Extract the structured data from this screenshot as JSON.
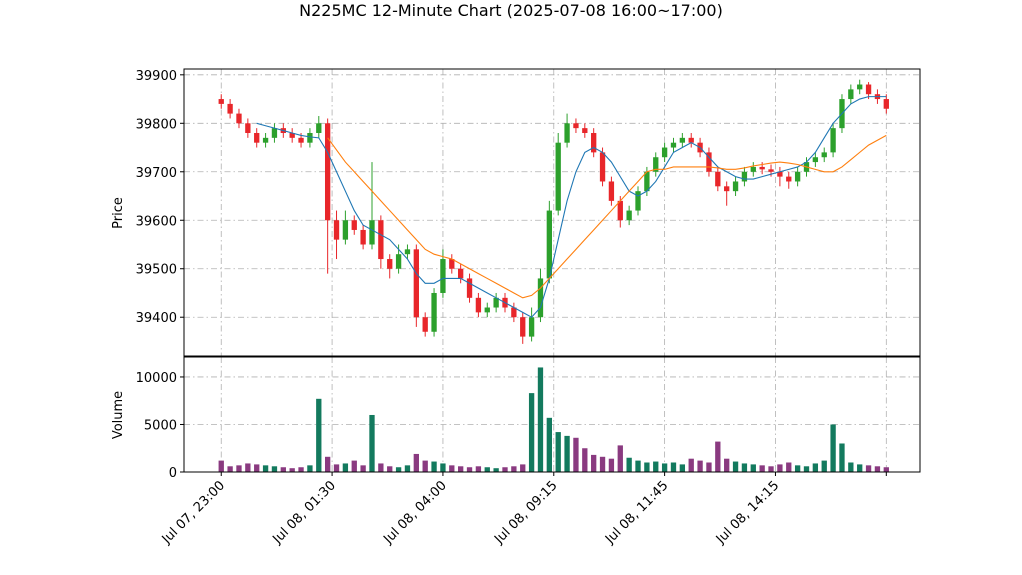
{
  "chart_data": {
    "type": "candlestick",
    "title": "N225MC 12-Minute Chart (2025-07-08 16:00~17:00)",
    "price_axis_label": "Price",
    "volume_axis_label": "Volume",
    "open": [
      39850,
      39840,
      39820,
      39800,
      39780,
      39760,
      39770,
      39790,
      39780,
      39770,
      39760,
      39780,
      39800,
      39600,
      39560,
      39600,
      39580,
      39550,
      39600,
      39520,
      39500,
      39530,
      39540,
      39400,
      39370,
      39450,
      39520,
      39500,
      39480,
      39440,
      39410,
      39420,
      39440,
      39420,
      39400,
      39360,
      39400,
      39480,
      39620,
      39760,
      39800,
      39790,
      39780,
      39740,
      39680,
      39640,
      39600,
      39620,
      39660,
      39700,
      39730,
      39750,
      39760,
      39770,
      39760,
      39740,
      39700,
      39670,
      39660,
      39680,
      39700,
      39710,
      39705,
      39700,
      39690,
      39680,
      39700,
      39720,
      39730,
      39740,
      39790,
      39850,
      39870,
      39880,
      39860,
      39850
    ],
    "high": [
      39860,
      39850,
      39830,
      39810,
      39790,
      39780,
      39800,
      39800,
      39790,
      39780,
      39790,
      39815,
      39810,
      39620,
      39620,
      39610,
      39590,
      39720,
      39610,
      39530,
      39550,
      39550,
      39550,
      39410,
      39460,
      39540,
      39530,
      39510,
      39490,
      39450,
      39430,
      39450,
      39450,
      39430,
      39410,
      39420,
      39500,
      39640,
      39780,
      39820,
      39810,
      39800,
      39790,
      39750,
      39690,
      39650,
      39630,
      39670,
      39710,
      39740,
      39760,
      39770,
      39780,
      39780,
      39770,
      39750,
      39710,
      39680,
      39690,
      39710,
      39720,
      39720,
      39715,
      39710,
      39700,
      39710,
      39730,
      39740,
      39750,
      39800,
      39860,
      39880,
      39890,
      39885,
      39870,
      39860
    ],
    "low": [
      39830,
      39810,
      39790,
      39770,
      39750,
      39750,
      39760,
      39770,
      39760,
      39750,
      39750,
      39770,
      39490,
      39520,
      39550,
      39570,
      39540,
      39540,
      39500,
      39480,
      39490,
      39520,
      39380,
      39360,
      39360,
      39440,
      39490,
      39470,
      39430,
      39400,
      39400,
      39410,
      39410,
      39390,
      39345,
      39350,
      39390,
      39470,
      39610,
      39750,
      39780,
      39770,
      39730,
      39670,
      39630,
      39585,
      39590,
      39610,
      39650,
      39690,
      39720,
      39740,
      39750,
      39750,
      39730,
      39690,
      39660,
      39630,
      39650,
      39670,
      39690,
      39695,
      39690,
      39670,
      39665,
      39670,
      39690,
      39710,
      39720,
      39730,
      39780,
      39840,
      39860,
      39850,
      39840,
      39820
    ],
    "close": [
      39840,
      39820,
      39800,
      39780,
      39760,
      39770,
      39790,
      39780,
      39770,
      39760,
      39780,
      39800,
      39600,
      39560,
      39600,
      39580,
      39550,
      39600,
      39520,
      39500,
      39530,
      39540,
      39400,
      39370,
      39450,
      39520,
      39500,
      39480,
      39440,
      39410,
      39420,
      39440,
      39420,
      39400,
      39360,
      39400,
      39480,
      39620,
      39760,
      39800,
      39790,
      39780,
      39740,
      39680,
      39640,
      39600,
      39620,
      39660,
      39700,
      39730,
      39750,
      39760,
      39770,
      39760,
      39740,
      39700,
      39670,
      39660,
      39680,
      39700,
      39710,
      39705,
      39700,
      39690,
      39680,
      39700,
      39720,
      39730,
      39740,
      39790,
      39850,
      39870,
      39880,
      39860,
      39850,
      39830
    ],
    "volume": [
      1200,
      600,
      700,
      900,
      800,
      700,
      600,
      500,
      400,
      500,
      700,
      7700,
      1600,
      800,
      900,
      1200,
      700,
      6000,
      900,
      600,
      500,
      700,
      1900,
      1200,
      1100,
      900,
      700,
      600,
      500,
      600,
      500,
      400,
      500,
      600,
      800,
      8300,
      11000,
      5700,
      4200,
      3800,
      3600,
      2500,
      1800,
      1600,
      1400,
      2800,
      1500,
      1200,
      1000,
      1100,
      900,
      1000,
      800,
      1400,
      1200,
      1000,
      3200,
      1400,
      1100,
      900,
      800,
      700,
      600,
      800,
      1000,
      700,
      600,
      900,
      1200,
      5000,
      3000,
      1000,
      800,
      700,
      600,
      500
    ],
    "moving_averages": [
      {
        "color": "#1f77b4",
        "values": [
          null,
          null,
          null,
          null,
          39800,
          39795,
          39790,
          39785,
          39780,
          39775,
          39772,
          39770,
          39740,
          39700,
          39660,
          39620,
          39590,
          39580,
          39570,
          39560,
          39540,
          39520,
          39490,
          39470,
          39470,
          39480,
          39480,
          39480,
          39470,
          39460,
          39450,
          39440,
          39430,
          39420,
          39410,
          39400,
          39420,
          39480,
          39560,
          39640,
          39700,
          39740,
          39750,
          39740,
          39720,
          39690,
          39660,
          39650,
          39660,
          39680,
          39710,
          39740,
          39750,
          39760,
          39750,
          39730,
          39710,
          39700,
          39690,
          39685,
          39685,
          39690,
          39695,
          39700,
          39705,
          39710,
          39720,
          39740,
          39770,
          39800,
          39820,
          39840,
          39850,
          39855,
          39855,
          39855
        ]
      },
      {
        "color": "#ff7f0e",
        "values": [
          null,
          null,
          null,
          null,
          null,
          null,
          null,
          null,
          null,
          null,
          null,
          null,
          39770,
          39745,
          39720,
          39700,
          39680,
          39660,
          39640,
          39620,
          39600,
          39580,
          39560,
          39540,
          39530,
          39525,
          39520,
          39510,
          39500,
          39490,
          39480,
          39470,
          39460,
          39450,
          39440,
          39445,
          39460,
          39480,
          39500,
          39520,
          39540,
          39560,
          39580,
          39600,
          39620,
          39640,
          39660,
          39680,
          39700,
          39705,
          39705,
          39710,
          39710,
          39710,
          39710,
          39710,
          39708,
          39705,
          39705,
          39708,
          39712,
          39715,
          39718,
          39720,
          39718,
          39715,
          39710,
          39705,
          39700,
          39700,
          39710,
          39725,
          39740,
          39755,
          39765,
          39775
        ]
      }
    ],
    "up_color": "#2ca02c",
    "down_color": "#e8262a",
    "volume_up_color": "#137a5e",
    "volume_down_color": "#8a3a80",
    "xlim": [
      -4.2,
      78.8
    ],
    "xticks": [
      {
        "value": 0,
        "label": "Jul 07, 23:00"
      },
      {
        "value": 12.5,
        "label": "Jul 08, 01:30"
      },
      {
        "value": 25,
        "label": "Jul 08, 04:00"
      },
      {
        "value": 37.5,
        "label": "Jul 08, 09:15"
      },
      {
        "value": 50,
        "label": "Jul 08, 11:45"
      },
      {
        "value": 62.5,
        "label": "Jul 08, 14:15"
      },
      {
        "value": 75,
        "label": null
      }
    ],
    "ylim": [
      39320,
      39912
    ],
    "yticks": [
      39400,
      39500,
      39600,
      39700,
      39800,
      39900
    ],
    "volume_ylim": [
      0,
      12100
    ],
    "volume_yticks": [
      0,
      5000,
      10000
    ],
    "grid": true
  }
}
